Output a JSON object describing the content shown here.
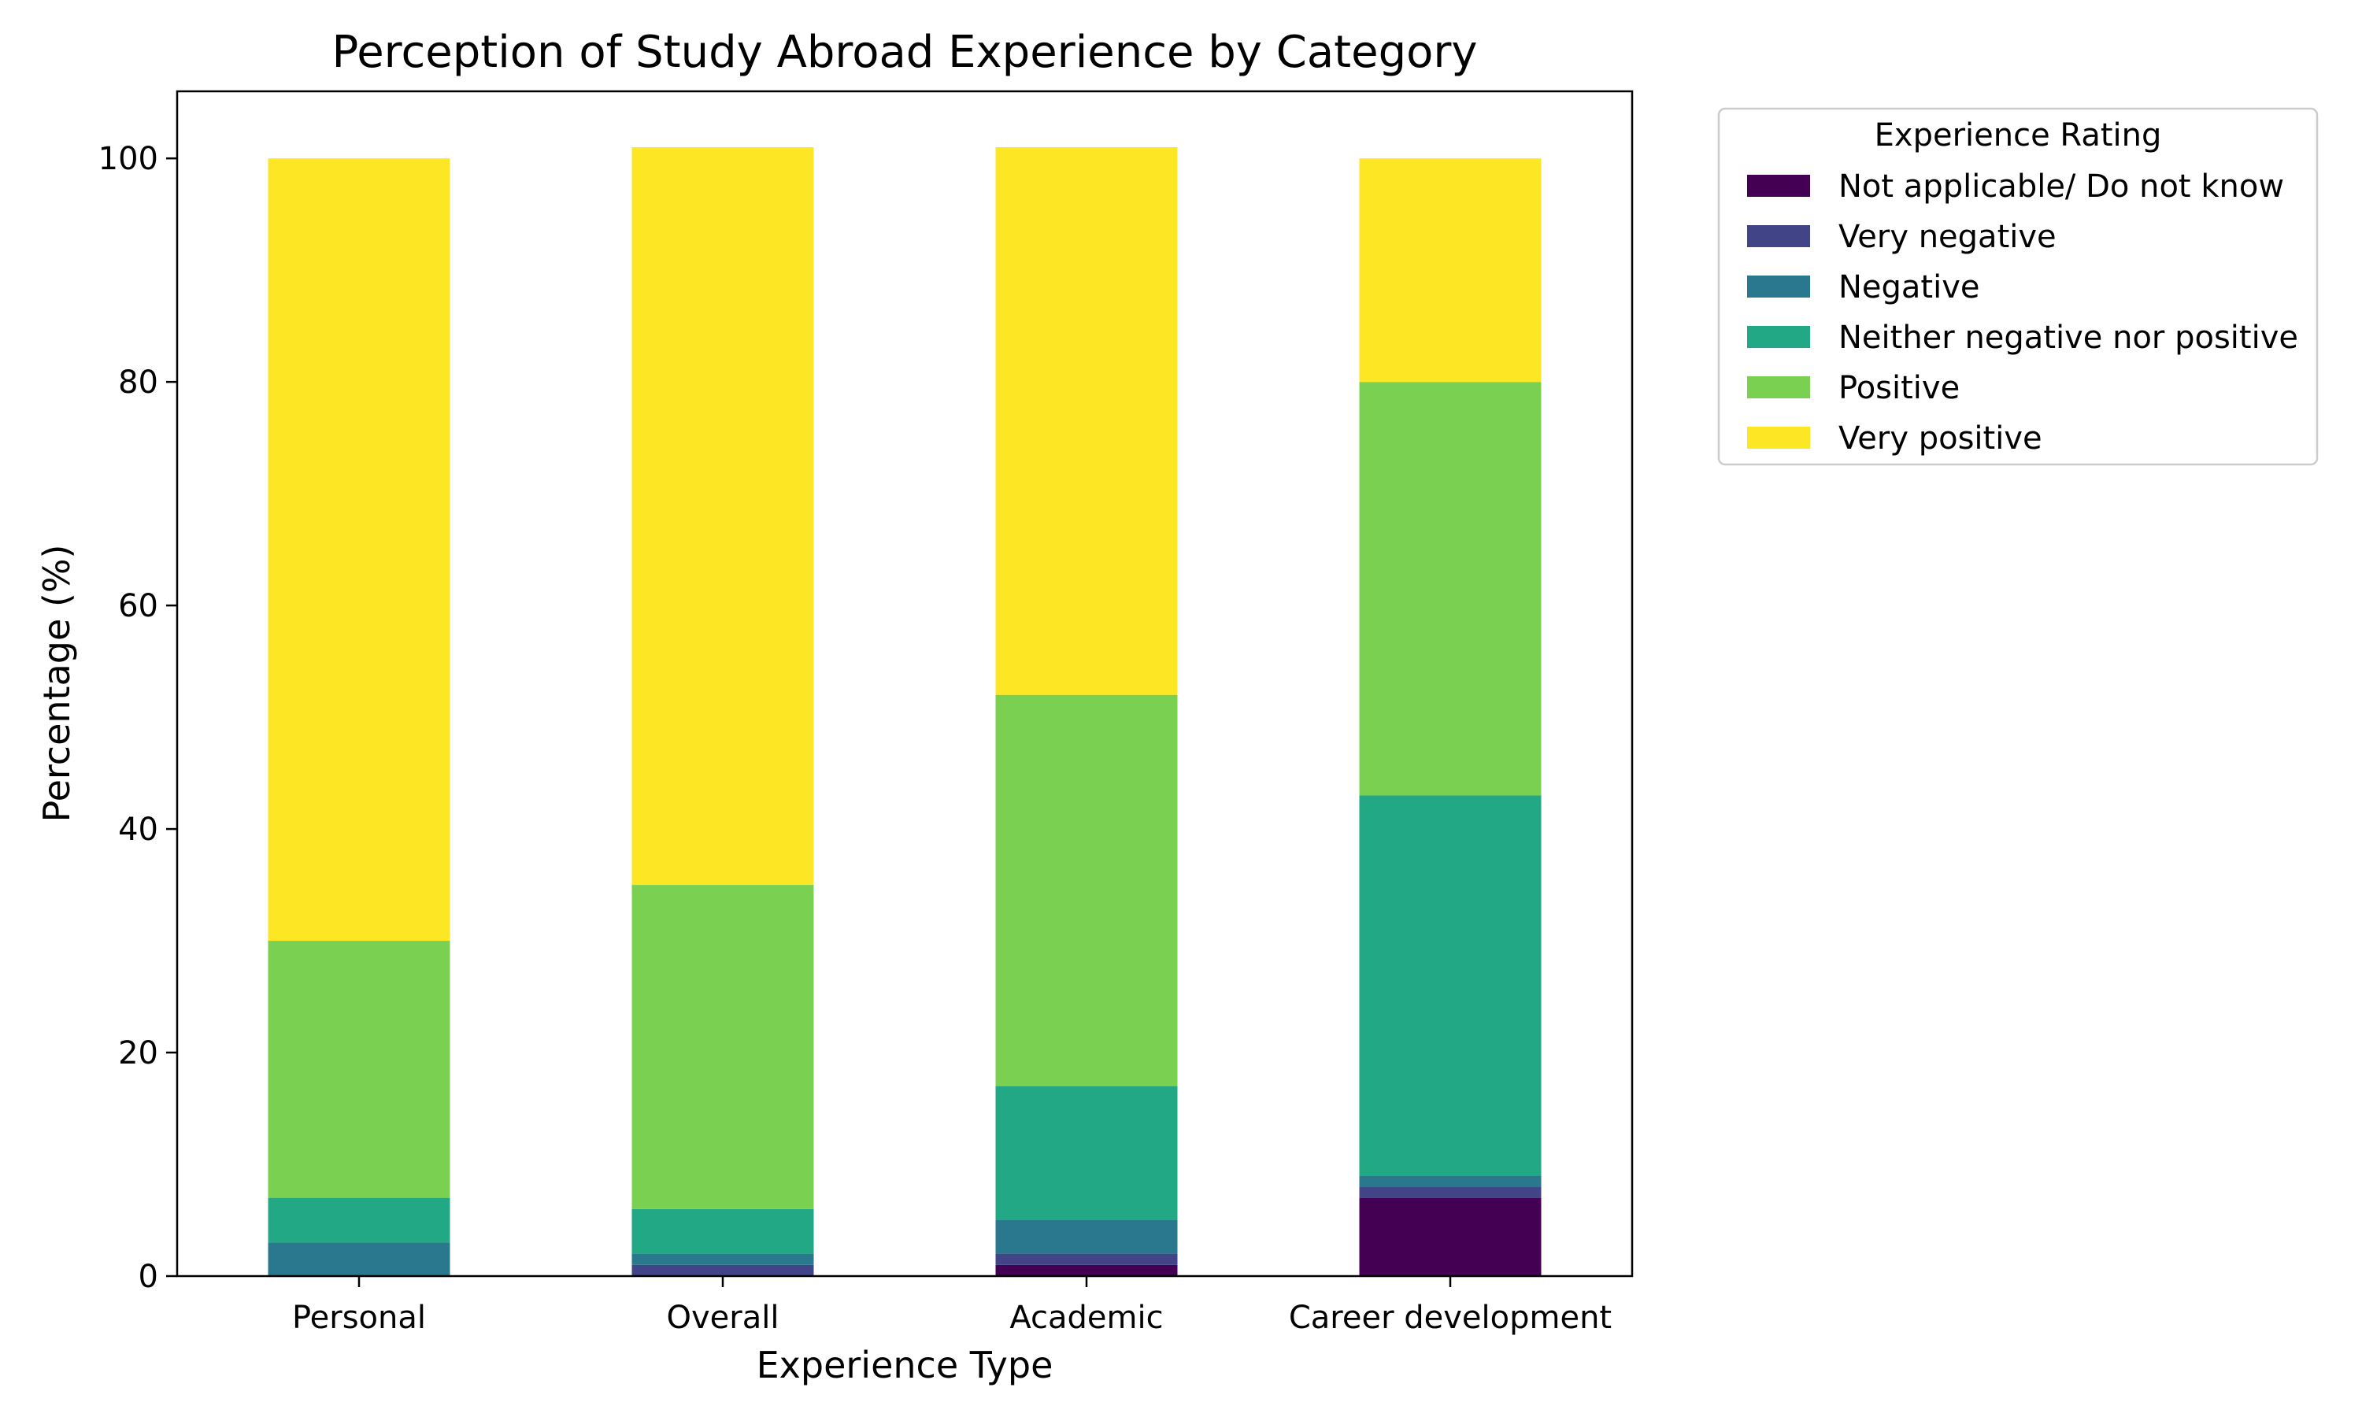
{
  "chart_data": {
    "type": "bar",
    "stacked": true,
    "title": "Perception of Study Abroad Experience by Category",
    "xlabel": "Experience Type",
    "ylabel": "Percentage (%)",
    "categories": [
      "Personal",
      "Overall",
      "Academic",
      "Career development"
    ],
    "ylim": [
      0,
      106
    ],
    "yticks": [
      0,
      20,
      40,
      60,
      80,
      100
    ],
    "grid": false,
    "legend": {
      "title": "Experience Rating",
      "placement": "outside upper right"
    },
    "series": [
      {
        "name": "Not applicable/ Do not know",
        "color": "#440154",
        "values": [
          0,
          0,
          1,
          7
        ]
      },
      {
        "name": "Very negative",
        "color": "#414487",
        "values": [
          0,
          1,
          1,
          1
        ]
      },
      {
        "name": "Negative",
        "color": "#2a788e",
        "values": [
          3,
          1,
          3,
          1
        ]
      },
      {
        "name": "Neither negative nor positive",
        "color": "#22a884",
        "values": [
          4,
          4,
          12,
          34
        ]
      },
      {
        "name": "Positive",
        "color": "#7ad151",
        "values": [
          23,
          29,
          35,
          37
        ]
      },
      {
        "name": "Very positive",
        "color": "#fde725",
        "values": [
          70,
          66,
          49,
          20
        ]
      }
    ]
  }
}
